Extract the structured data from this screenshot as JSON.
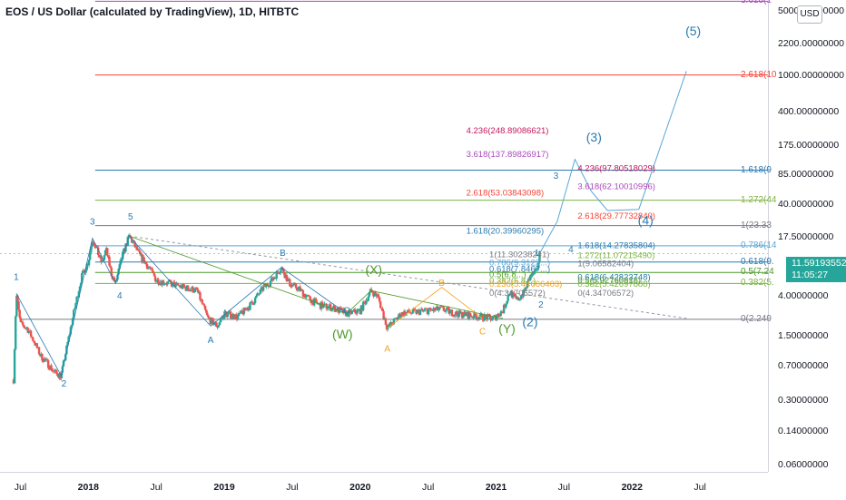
{
  "header": {
    "title": "EOS / US Dollar (calculated by TradingView), 1D, HITBTC"
  },
  "price_axis": {
    "currency": "USD",
    "labels": [
      "5000.00000000",
      "2200.00000000",
      "1000.00000000",
      "400.00000000",
      "175.00000000",
      "85.00000000",
      "40.00000000",
      "17.50000000",
      "4.00000000",
      "1.50000000",
      "0.70000000",
      "0.30000000",
      "0.14000000",
      "0.06000000"
    ],
    "current_price": "11.59193552",
    "countdown": "11:05:27"
  },
  "time_axis": {
    "labels": [
      "Jul",
      "2018",
      "Jul",
      "2019",
      "Jul",
      "2020",
      "Jul",
      "2021",
      "Jul",
      "2022",
      "Jul"
    ],
    "bold": [
      false,
      true,
      false,
      true,
      false,
      true,
      false,
      true,
      false,
      true,
      false
    ]
  },
  "colors": {
    "up": "#26a69a",
    "down": "#ef5350",
    "wave_blue": "#2a7ab0",
    "green": "#4c9a2a",
    "orange": "#f4a21d",
    "red": "#f44336",
    "magenta": "#c2185b",
    "grey": "#787b86",
    "teal": "#2ba5a6"
  },
  "chart_data": {
    "type": "candlestick",
    "title": "EOS / US Dollar (calculated by TradingView), 1D, HITBTC",
    "y_scale": "log",
    "ylim": [
      0.05,
      6500
    ],
    "xlim": [
      2017.35,
      2023.0
    ],
    "price_path": [
      [
        2017.45,
        0.5
      ],
      [
        2017.47,
        4.3
      ],
      [
        2017.5,
        2.0
      ],
      [
        2017.55,
        1.8
      ],
      [
        2017.6,
        1.3
      ],
      [
        2017.65,
        0.9
      ],
      [
        2017.7,
        0.75
      ],
      [
        2017.75,
        0.6
      ],
      [
        2017.8,
        0.55
      ],
      [
        2017.85,
        1.3
      ],
      [
        2017.9,
        3.0
      ],
      [
        2017.95,
        6.5
      ],
      [
        2018.0,
        9.5
      ],
      [
        2018.03,
        17.0
      ],
      [
        2018.06,
        13.0
      ],
      [
        2018.1,
        9.0
      ],
      [
        2018.13,
        13.0
      ],
      [
        2018.17,
        7.0
      ],
      [
        2018.2,
        5.5
      ],
      [
        2018.25,
        11.0
      ],
      [
        2018.3,
        18.0
      ],
      [
        2018.33,
        15.0
      ],
      [
        2018.38,
        11.0
      ],
      [
        2018.45,
        8.0
      ],
      [
        2018.5,
        6.0
      ],
      [
        2018.6,
        5.5
      ],
      [
        2018.7,
        5.0
      ],
      [
        2018.8,
        4.6
      ],
      [
        2018.88,
        2.3
      ],
      [
        2018.95,
        1.9
      ],
      [
        2019.0,
        2.6
      ],
      [
        2019.1,
        2.4
      ],
      [
        2019.2,
        3.3
      ],
      [
        2019.28,
        4.8
      ],
      [
        2019.35,
        6.0
      ],
      [
        2019.42,
        8.2
      ],
      [
        2019.48,
        5.5
      ],
      [
        2019.55,
        4.8
      ],
      [
        2019.62,
        3.8
      ],
      [
        2019.7,
        3.2
      ],
      [
        2019.8,
        3.0
      ],
      [
        2019.9,
        2.6
      ],
      [
        2020.0,
        2.8
      ],
      [
        2020.08,
        4.6
      ],
      [
        2020.13,
        4.0
      ],
      [
        2020.2,
        1.8
      ],
      [
        2020.3,
        2.6
      ],
      [
        2020.4,
        2.7
      ],
      [
        2020.5,
        2.8
      ],
      [
        2020.6,
        2.9
      ],
      [
        2020.7,
        2.6
      ],
      [
        2020.8,
        2.5
      ],
      [
        2020.9,
        2.4
      ],
      [
        2020.98,
        2.3
      ],
      [
        2021.05,
        2.8
      ],
      [
        2021.1,
        4.5
      ],
      [
        2021.15,
        3.6
      ],
      [
        2021.2,
        4.3
      ],
      [
        2021.25,
        6.5
      ],
      [
        2021.3,
        7.5
      ],
      [
        2021.32,
        11.6
      ]
    ],
    "forecast_path": [
      [
        2021.32,
        11.6
      ],
      [
        2021.45,
        26.0
      ],
      [
        2021.58,
        122.0
      ],
      [
        2021.7,
        55.0
      ],
      [
        2021.82,
        34.0
      ],
      [
        2022.05,
        35.0
      ],
      [
        2022.4,
        1100.0
      ]
    ],
    "horizontal_levels": [
      {
        "price": 1000,
        "label": "2.618(10",
        "color": "#f44336"
      },
      {
        "price": 93,
        "label": "1.618(9",
        "color": "#2a7ab0"
      },
      {
        "price": 44,
        "label": "1.272(44",
        "color": "#7cb342"
      },
      {
        "price": 23.33,
        "label": "1(23.33",
        "color": "#787b86"
      },
      {
        "price": 14.1,
        "label": "0.786(14",
        "color": "#5aa7d6"
      },
      {
        "price": 9.4,
        "label": "0.618(9.",
        "color": "#2a7ab0"
      },
      {
        "price": 7.24,
        "label": "0.5(7.24",
        "color": "#4c9a2a"
      },
      {
        "price": 5.5,
        "label": "0.382(5.",
        "color": "#7cb342"
      },
      {
        "price": 2.249,
        "label": "0(2.249",
        "color": "#787b86"
      },
      {
        "price": 6300,
        "label": "3.618(1",
        "color": "#ab47bc"
      }
    ],
    "fib_labels": [
      {
        "text": "4.236(248.89086621)",
        "price": 248.89,
        "color": "#c2185b"
      },
      {
        "text": "3.618(137.89826917)",
        "price": 137.9,
        "color": "#ab47bc"
      },
      {
        "text": "2.618(53.03843098)",
        "price": 53.04,
        "color": "#f44336"
      },
      {
        "text": "1.618(20.39960295)",
        "price": 20.4,
        "color": "#2a7ab0"
      },
      {
        "text": "4.236(97.80518029)",
        "price": 97.8,
        "color": "#c2185b"
      },
      {
        "text": "3.618(62.10010996)",
        "price": 62.1,
        "color": "#ab47bc"
      },
      {
        "text": "2.618(29.77732840)",
        "price": 29.78,
        "color": "#f44336"
      },
      {
        "text": "1.618(14.27835804)",
        "price": 14.28,
        "color": "#2a7ab0"
      },
      {
        "text": "1.272(11.07215490)",
        "price": 11.07,
        "color": "#7cb342"
      },
      {
        "text": "1(9.06582404)",
        "price": 9.07,
        "color": "#787b86"
      },
      {
        "text": "0.618(6.42823748)",
        "price": 6.43,
        "color": "#2a7ab0"
      },
      {
        "text": "0.5(5.92760818)",
        "price": 5.93,
        "color": "#4c9a2a"
      },
      {
        "text": "0.382(5.42697888)",
        "price": 5.43,
        "color": "#7cb342"
      },
      {
        "text": "0(4.34706572)",
        "price": 4.347,
        "color": "#787b86"
      },
      {
        "text": "1(11.30238241)",
        "price": 11.3,
        "color": "#787b86"
      },
      {
        "text": "0.786(9.3122...)",
        "price": 9.2,
        "color": "#5aa7d6"
      },
      {
        "text": "0.618(7.8467...)",
        "price": 7.85,
        "color": "#2a7ab0"
      },
      {
        "text": "0.5(6.8...)",
        "price": 6.9,
        "color": "#4c9a2a"
      },
      {
        "text": "0.382(5.8...)",
        "price": 5.9,
        "color": "#7cb342"
      },
      {
        "text": "0.236(5.44666403)",
        "price": 5.45,
        "color": "#f4a21d"
      },
      {
        "text": "0(4.34706572)",
        "price": 4.35,
        "color": "#787b86"
      }
    ],
    "wave_labels": [
      {
        "text": "1",
        "x": 2017.47,
        "price": 6.0,
        "color": "#2a7ab0",
        "size": 10
      },
      {
        "text": "2",
        "x": 2017.82,
        "price": 0.42,
        "color": "#2a7ab0",
        "size": 10
      },
      {
        "text": "3",
        "x": 2018.03,
        "price": 24.0,
        "color": "#2a7ab0",
        "size": 10
      },
      {
        "text": "4",
        "x": 2018.23,
        "price": 3.8,
        "color": "#2a7ab0",
        "size": 10
      },
      {
        "text": "5",
        "x": 2018.31,
        "price": 27.0,
        "color": "#2a7ab0",
        "size": 10
      },
      {
        "text": "A",
        "x": 2018.9,
        "price": 1.25,
        "color": "#2a7ab0",
        "size": 10
      },
      {
        "text": "B",
        "x": 2019.43,
        "price": 11.0,
        "color": "#2a7ab0",
        "size": 10
      },
      {
        "text": "C",
        "x": 2019.9,
        "price": 2.6,
        "color": "#2a7ab0",
        "size": 10
      },
      {
        "text": "(W)",
        "x": 2019.87,
        "price": 1.4,
        "color": "#4c9a2a",
        "size": 14
      },
      {
        "text": "(X)",
        "x": 2020.1,
        "price": 7.0,
        "color": "#4c9a2a",
        "size": 14
      },
      {
        "text": "(Y)",
        "x": 2021.08,
        "price": 1.6,
        "color": "#4c9a2a",
        "size": 14
      },
      {
        "text": "A",
        "x": 2020.2,
        "price": 1.0,
        "color": "#f4a21d",
        "size": 10
      },
      {
        "text": "B",
        "x": 2020.6,
        "price": 5.2,
        "color": "#f4a21d",
        "size": 10
      },
      {
        "text": "C",
        "x": 2020.9,
        "price": 1.55,
        "color": "#f4a21d",
        "size": 10
      },
      {
        "text": "(2)",
        "x": 2021.25,
        "price": 1.9,
        "color": "#2a7ab0",
        "size": 14
      },
      {
        "text": "2",
        "x": 2021.33,
        "price": 3.0,
        "color": "#2a7ab0",
        "size": 10
      },
      {
        "text": "3",
        "x": 2021.44,
        "price": 75.0,
        "color": "#2a7ab0",
        "size": 10
      },
      {
        "text": "4",
        "x": 2021.55,
        "price": 12.0,
        "color": "#2a7ab0",
        "size": 10
      },
      {
        "text": "1",
        "x": 2021.3,
        "price": 11.0,
        "color": "#2a7ab0",
        "size": 10
      },
      {
        "text": "(3)",
        "x": 2021.72,
        "price": 190.0,
        "color": "#2a7ab0",
        "size": 14
      },
      {
        "text": "(4)",
        "x": 2022.1,
        "price": 24.0,
        "color": "#2a7ab0",
        "size": 14
      },
      {
        "text": "(5)",
        "x": 2022.45,
        "price": 2700.0,
        "color": "#2a7ab0",
        "size": 14
      }
    ]
  }
}
